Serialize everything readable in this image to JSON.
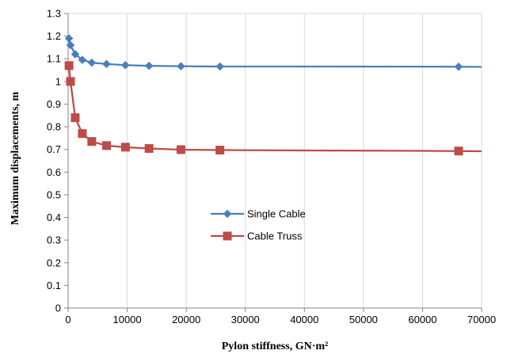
{
  "chart_data": {
    "type": "line",
    "title": "",
    "xlabel": "Pylon stiffness, GN·m²",
    "ylabel": "Maximum displacements, m",
    "xlim": [
      0,
      70000
    ],
    "ylim": [
      0,
      1.3
    ],
    "x_ticks": [
      0,
      10000,
      20000,
      30000,
      40000,
      50000,
      60000,
      70000
    ],
    "y_ticks": [
      0,
      0.1,
      0.2,
      0.3,
      0.4,
      0.5,
      0.6,
      0.7,
      0.8,
      0.9,
      1,
      1.1,
      1.2,
      1.3
    ],
    "x_tick_labels": [
      "0",
      "10000",
      "20000",
      "30000",
      "40000",
      "50000",
      "60000",
      "70000"
    ],
    "y_tick_labels": [
      "0",
      "0.1",
      "0.2",
      "0.3",
      "0.4",
      "0.5",
      "0.6",
      "0.7",
      "0.8",
      "0.9",
      "1",
      "1.1",
      "1.2",
      "1.3"
    ],
    "grid": "vertical",
    "legend_position": "center",
    "series": [
      {
        "name": "Single Cable",
        "color": "#4a7ebb",
        "marker": "diamond",
        "points": [
          [
            150,
            1.19
          ],
          [
            400,
            1.16
          ],
          [
            1200,
            1.12
          ],
          [
            2400,
            1.095
          ],
          [
            4000,
            1.083
          ],
          [
            6500,
            1.077
          ],
          [
            9700,
            1.072
          ],
          [
            13700,
            1.069
          ],
          [
            19100,
            1.067
          ],
          [
            25700,
            1.066
          ],
          [
            66100,
            1.065
          ],
          [
            70000,
            1.064
          ]
        ]
      },
      {
        "name": "Cable Truss",
        "color": "#be4b48",
        "marker": "square",
        "points": [
          [
            150,
            1.07
          ],
          [
            400,
            1.0
          ],
          [
            1200,
            0.84
          ],
          [
            2400,
            0.77
          ],
          [
            4000,
            0.735
          ],
          [
            6500,
            0.717
          ],
          [
            9700,
            0.71
          ],
          [
            13700,
            0.704
          ],
          [
            19100,
            0.699
          ],
          [
            25700,
            0.697
          ],
          [
            66100,
            0.693
          ],
          [
            70000,
            0.692
          ]
        ]
      }
    ]
  }
}
